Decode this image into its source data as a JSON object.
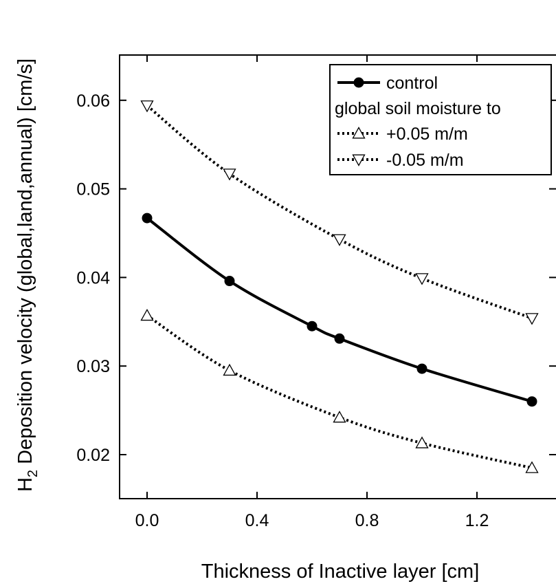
{
  "chart_data": {
    "type": "line",
    "title": "",
    "xlabel": "Thickness of Inactive layer [cm]",
    "ylabel_main": "H",
    "ylabel_sub": "2",
    "ylabel_rest": " Deposition velocity (global,land,annual) [cm/s]",
    "xlim": [
      -0.1,
      1.45
    ],
    "ylim": [
      0.015,
      0.065
    ],
    "x_ticks": [
      0.0,
      0.4,
      0.8,
      1.2
    ],
    "x_tick_labels": [
      "0.0",
      "0.4",
      "0.8",
      "1.2"
    ],
    "y_ticks": [
      0.02,
      0.03,
      0.04,
      0.05,
      0.06
    ],
    "y_tick_labels": [
      "0.02",
      "0.03",
      "0.04",
      "0.05",
      "0.06"
    ],
    "grid": false,
    "legend_position": "top-right",
    "legend_heading": "global soil moisture to",
    "series": [
      {
        "name": "control",
        "style": "solid",
        "marker": "filled-circle",
        "color": "#000000",
        "x": [
          0.0,
          0.3,
          0.6,
          0.7,
          1.0,
          1.4
        ],
        "y": [
          0.0467,
          0.0396,
          0.0345,
          0.0331,
          0.0297,
          0.026
        ]
      },
      {
        "name": "+0.05 m/m",
        "style": "dotted",
        "marker": "open-triangle-up",
        "color": "#000000",
        "x": [
          0.0,
          0.3,
          0.7,
          1.0,
          1.4
        ],
        "y": [
          0.0357,
          0.0295,
          0.0242,
          0.0213,
          0.0185
        ]
      },
      {
        "name": "-0.05 m/m",
        "style": "dotted",
        "marker": "open-triangle-down",
        "color": "#000000",
        "x": [
          0.0,
          0.3,
          0.7,
          1.0,
          1.4
        ],
        "y": [
          0.0594,
          0.0517,
          0.0443,
          0.0399,
          0.0354
        ]
      }
    ]
  }
}
